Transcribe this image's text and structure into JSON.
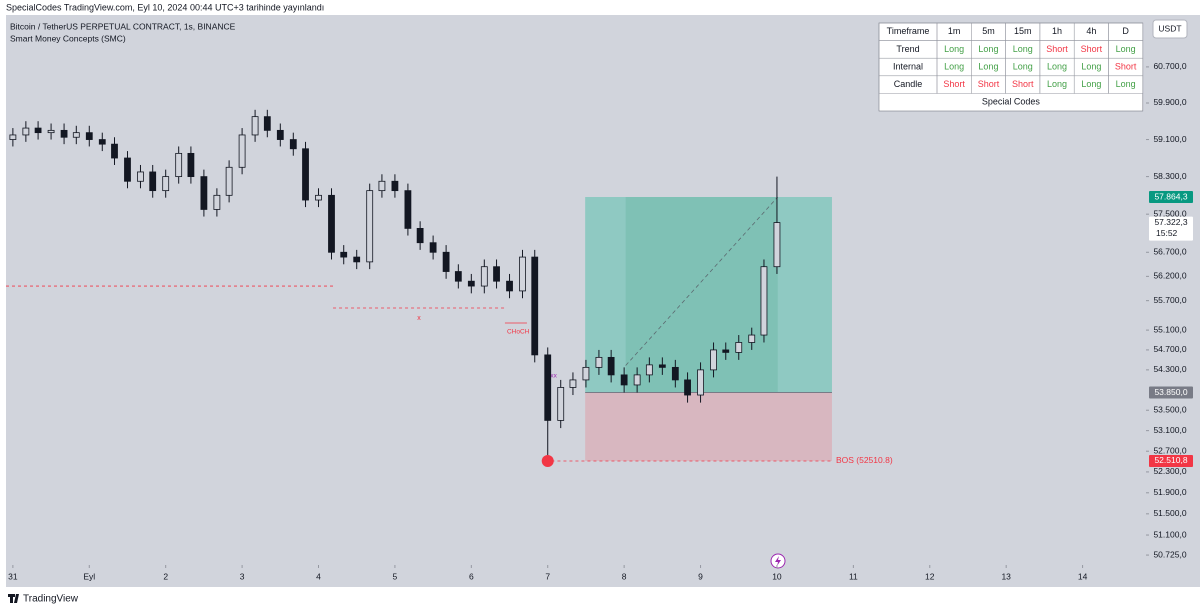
{
  "header": {
    "published": "SpecialCodes TradingView.com, Eyl 10, 2024 00:44 UTC+3 tarihinde yayınlandı",
    "symbol": "Bitcoin / TetherUS PERPETUAL CONTRACT, 1s, BINANCE",
    "indicator": "Smart Money Concepts (SMC)",
    "currency": "USDT"
  },
  "chart_data": {
    "type": "candlestick",
    "color": "#131722",
    "log_scale": true,
    "x": [
      0,
      0.17,
      0.33,
      0.5,
      0.67,
      0.83,
      1,
      1.17,
      1.33,
      1.5,
      1.67,
      1.83,
      2,
      2.17,
      2.33,
      2.5,
      2.67,
      2.83,
      3,
      3.17,
      3.33,
      3.5,
      3.67,
      3.83,
      4,
      4.17,
      4.33,
      4.5,
      4.67,
      4.83,
      5,
      5.17,
      5.33,
      5.5,
      5.67,
      5.83,
      6,
      6.17,
      6.33,
      6.5,
      6.67,
      6.83,
      7,
      7.17,
      7.33,
      7.5,
      7.67,
      7.83,
      8,
      8.17,
      8.33,
      8.5,
      8.67,
      8.83,
      9,
      9.17,
      9.33,
      9.5,
      9.67,
      9.83,
      10
    ],
    "open": [
      59100,
      59200,
      59350,
      59250,
      59300,
      59150,
      59250,
      59100,
      59000,
      58700,
      58200,
      58400,
      58000,
      58300,
      58800,
      58300,
      57600,
      57900,
      58500,
      59200,
      59600,
      59300,
      59100,
      58900,
      57800,
      57900,
      56700,
      56600,
      56500,
      58000,
      58200,
      58000,
      57200,
      56900,
      56700,
      56300,
      56100,
      56000,
      56400,
      56100,
      55900,
      56600,
      54600,
      53300,
      53950,
      54100,
      54350,
      54550,
      54200,
      54000,
      54200,
      54400,
      54350,
      54100,
      53800,
      54300,
      54700,
      54650,
      54850,
      55000,
      56400
    ],
    "high": [
      59350,
      59500,
      59500,
      59450,
      59450,
      59400,
      59400,
      59250,
      59150,
      58850,
      58550,
      58550,
      58450,
      58950,
      58950,
      58450,
      58050,
      58650,
      59350,
      59750,
      59750,
      59450,
      59250,
      59050,
      58050,
      58050,
      56850,
      56750,
      58150,
      58350,
      58350,
      58150,
      57350,
      57050,
      56850,
      56450,
      56250,
      56550,
      56550,
      56250,
      56750,
      56750,
      54750,
      54100,
      54250,
      54500,
      54700,
      54700,
      54350,
      54350,
      54550,
      54550,
      54500,
      54250,
      54450,
      54850,
      54850,
      55000,
      55150,
      56550,
      58300
    ],
    "low": [
      58950,
      59050,
      59100,
      59100,
      59000,
      59000,
      58950,
      58850,
      58550,
      58050,
      58050,
      57850,
      57850,
      58150,
      58150,
      57450,
      57450,
      57750,
      58350,
      59050,
      59150,
      58950,
      58750,
      57650,
      57650,
      56550,
      56450,
      56350,
      56350,
      57850,
      57850,
      57050,
      56750,
      56550,
      56150,
      55950,
      55850,
      55850,
      55950,
      55750,
      55750,
      54450,
      52510.8,
      53150,
      53800,
      53950,
      54200,
      54050,
      53850,
      53850,
      54050,
      54200,
      53950,
      53650,
      53650,
      54150,
      54500,
      54500,
      54700,
      54850,
      56250
    ],
    "close": [
      59200,
      59350,
      59250,
      59300,
      59150,
      59250,
      59100,
      59000,
      58700,
      58200,
      58400,
      58000,
      58300,
      58800,
      58300,
      57600,
      57900,
      58500,
      59200,
      59600,
      59300,
      59100,
      58900,
      57800,
      57900,
      56700,
      56600,
      56500,
      58000,
      58200,
      58000,
      57200,
      56900,
      56700,
      56300,
      56100,
      56000,
      56400,
      56100,
      55900,
      56600,
      54600,
      53300,
      53950,
      54100,
      54350,
      54550,
      54200,
      54000,
      54200,
      54400,
      54350,
      54100,
      53800,
      54300,
      54700,
      54650,
      54850,
      55000,
      56400,
      57322.3
    ],
    "xlim": [
      -0.09,
      14.83
    ],
    "xticks": [
      {
        "value": 0,
        "label": "31"
      },
      {
        "value": 1,
        "label": "Eyl"
      },
      2,
      3,
      4,
      5,
      6,
      7,
      8,
      9,
      10,
      11,
      12,
      13,
      14
    ],
    "ylim": [
      50540,
      61870
    ],
    "yticks": [
      {
        "value": 60700,
        "label": "60.700,0"
      },
      {
        "value": 59900,
        "label": "59.900,0"
      },
      {
        "value": 59100,
        "label": "59.100,0"
      },
      {
        "value": 58300,
        "label": "58.300,0"
      },
      {
        "value": 57500,
        "label": "57.500,0"
      },
      {
        "value": 56700,
        "label": "56.700,0"
      },
      {
        "value": 56200,
        "label": "56.200,0"
      },
      {
        "value": 55700,
        "label": "55.700,0"
      },
      {
        "value": 55100,
        "label": "55.100,0"
      },
      {
        "value": 54700,
        "label": "54.700,0"
      },
      {
        "value": 54300,
        "label": "54.300,0"
      },
      {
        "value": 53500,
        "label": "53.500,0"
      },
      {
        "value": 53100,
        "label": "53.100,0"
      },
      {
        "value": 52700,
        "label": "52.700,0"
      },
      {
        "value": 52300,
        "label": "52.300,0"
      },
      {
        "value": 51900,
        "label": "51.900,0"
      },
      {
        "value": 51500,
        "label": "51.500,0"
      },
      {
        "value": 51100,
        "label": "51.100,0"
      },
      {
        "value": 50725,
        "label": "50.725,0"
      }
    ],
    "price_tags": [
      {
        "value": 57864.3,
        "label": "57.864,3",
        "color": "#089981"
      },
      {
        "value": 57322.3,
        "label": "57.322,3",
        "color": "#ffffff"
      },
      {
        "value": 53850,
        "label": "53.850,0",
        "color": "#787b86"
      },
      {
        "value": 52510.8,
        "label": "52.510,8",
        "color": "#f23645"
      }
    ],
    "countdown": "15:52",
    "position": {
      "entry": 53850,
      "target": 57864.3,
      "stop": 52510.8,
      "x_start": 7.49,
      "x_end": 10.72,
      "filled_from": 8.02,
      "filled_to": 10.01,
      "profit_color": "#8fc9c2",
      "filled_color": "#7fc1b5",
      "loss_color": "#d8b7c0"
    },
    "structure_lines": [
      {
        "price": 56000,
        "x": [
          -0.09,
          4.19
        ]
      },
      {
        "price": 55550,
        "x": [
          4.19,
          6.44
        ]
      },
      {
        "price": 52510.8,
        "x": [
          6.97,
          10.72
        ]
      }
    ],
    "annotations": {
      "choch": "CHoCH",
      "x_mark": "x",
      "triple_x": "xxx",
      "bos": "BOS  (52510.8)"
    }
  },
  "table": {
    "header": [
      "Timeframe",
      "1m",
      "5m",
      "15m",
      "1h",
      "4h",
      "D"
    ],
    "rows": [
      {
        "label": "Trend",
        "cells": [
          {
            "text": "Long",
            "color": "#43a047"
          },
          {
            "text": "Long",
            "color": "#43a047"
          },
          {
            "text": "Long",
            "color": "#43a047"
          },
          {
            "text": "Short",
            "color": "#f23645"
          },
          {
            "text": "Short",
            "color": "#f23645"
          },
          {
            "text": "Long",
            "color": "#43a047"
          }
        ]
      },
      {
        "label": "Internal",
        "cells": [
          {
            "text": "Long",
            "color": "#43a047"
          },
          {
            "text": "Long",
            "color": "#43a047"
          },
          {
            "text": "Long",
            "color": "#43a047"
          },
          {
            "text": "Long",
            "color": "#43a047"
          },
          {
            "text": "Long",
            "color": "#43a047"
          },
          {
            "text": "Short",
            "color": "#f23645"
          }
        ]
      },
      {
        "label": "Candle",
        "cells": [
          {
            "text": "Short",
            "color": "#f23645"
          },
          {
            "text": "Short",
            "color": "#f23645"
          },
          {
            "text": "Short",
            "color": "#f23645"
          },
          {
            "text": "Long",
            "color": "#43a047"
          },
          {
            "text": "Long",
            "color": "#43a047"
          },
          {
            "text": "Long",
            "color": "#43a047"
          }
        ]
      }
    ],
    "footer": "Special Codes"
  },
  "footer": {
    "brand": "TradingView"
  }
}
